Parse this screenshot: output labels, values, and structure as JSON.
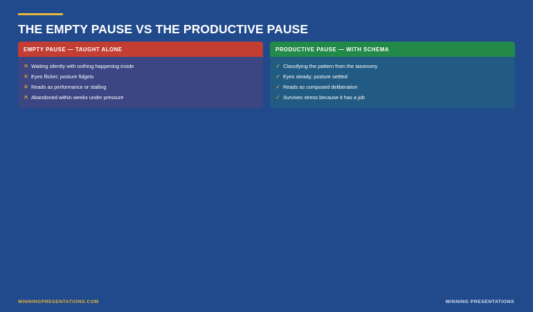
{
  "title": "THE EMPTY PAUSE VS THE PRODUCTIVE PAUSE",
  "colors": {
    "background": "#214a8c",
    "accent": "#e8b63a",
    "empty_header": "#c23d32",
    "empty_panel": "#3b4682",
    "productive_header": "#238948",
    "productive_panel": "#215a82"
  },
  "panels": {
    "empty": {
      "heading": "EMPTY PAUSE — TAUGHT ALONE",
      "icon_glyph": "✕",
      "icon_name": "x-mark-icon",
      "items": [
        "Waiting silently with nothing happening inside",
        "Eyes flicker; posture fidgets",
        "Reads as performance or stalling",
        "Abandoned within weeks under pressure"
      ]
    },
    "productive": {
      "heading": "PRODUCTIVE PAUSE — WITH SCHEMA",
      "icon_glyph": "✓",
      "icon_name": "check-mark-icon",
      "items": [
        "Classifying the pattern from the taxonomy",
        "Eyes steady; posture settled",
        "Reads as composed deliberation",
        "Survives stress because it has a job"
      ]
    }
  },
  "footer": {
    "website": "WINNINGPRESENTATIONS.COM",
    "brand": "WINNING PRESENTATIONS"
  }
}
